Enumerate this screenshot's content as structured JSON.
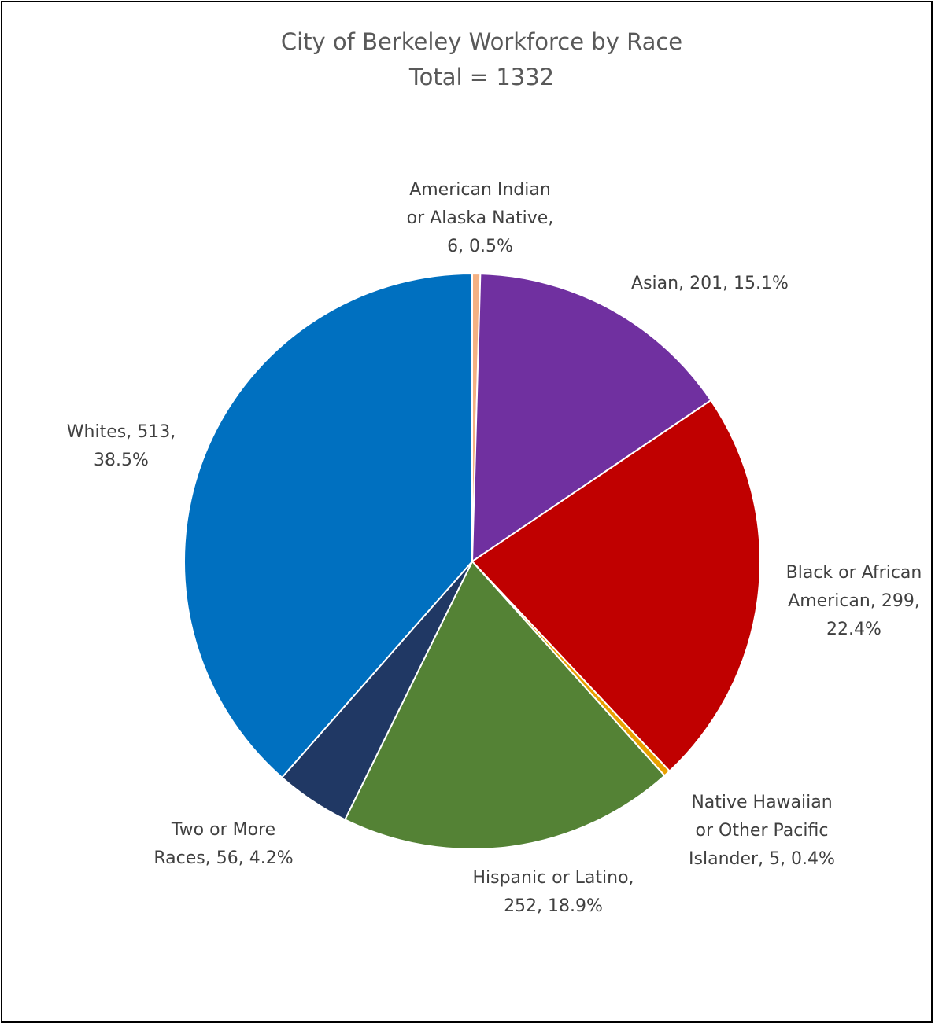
{
  "chart_data": {
    "type": "pie",
    "title": "City of Berkeley Workforce by Race",
    "subtitle": "Total = 1332",
    "total": 1332,
    "start_angle_deg": 0,
    "direction": "clockwise",
    "legend": "none",
    "slices": [
      {
        "name": "American Indian or Alaska Native",
        "value": 6,
        "percent": "0.5%",
        "color": "#F4B183",
        "label_lines": [
          "American Indian",
          "or Alaska Native,",
          "6, 0.5%"
        ]
      },
      {
        "name": "Asian",
        "value": 201,
        "percent": "15.1%",
        "color": "#7030A0",
        "label_lines": [
          "Asian, 201, 15.1%"
        ]
      },
      {
        "name": "Black or African American",
        "value": 299,
        "percent": "22.4%",
        "color": "#C00000",
        "label_lines": [
          "Black or African",
          "American, 299,",
          "22.4%"
        ]
      },
      {
        "name": "Native Hawaiian or Other Pacific Islander",
        "value": 5,
        "percent": "0.4%",
        "color": "#E8A000",
        "label_lines": [
          "Native Hawaiian",
          "or Other Pacific",
          "Islander, 5, 0.4%"
        ]
      },
      {
        "name": "Hispanic or Latino",
        "value": 252,
        "percent": "18.9%",
        "color": "#548235",
        "label_lines": [
          "Hispanic or Latino,",
          "252, 18.9%"
        ]
      },
      {
        "name": "Two or More Races",
        "value": 56,
        "percent": "4.2%",
        "color": "#203864",
        "label_lines": [
          "Two or More",
          "Races, 56, 4.2%"
        ]
      },
      {
        "name": "Whites",
        "value": 513,
        "percent": "38.5%",
        "color": "#0070C0",
        "label_lines": [
          "Whites, 513,",
          "38.5%"
        ]
      }
    ]
  }
}
